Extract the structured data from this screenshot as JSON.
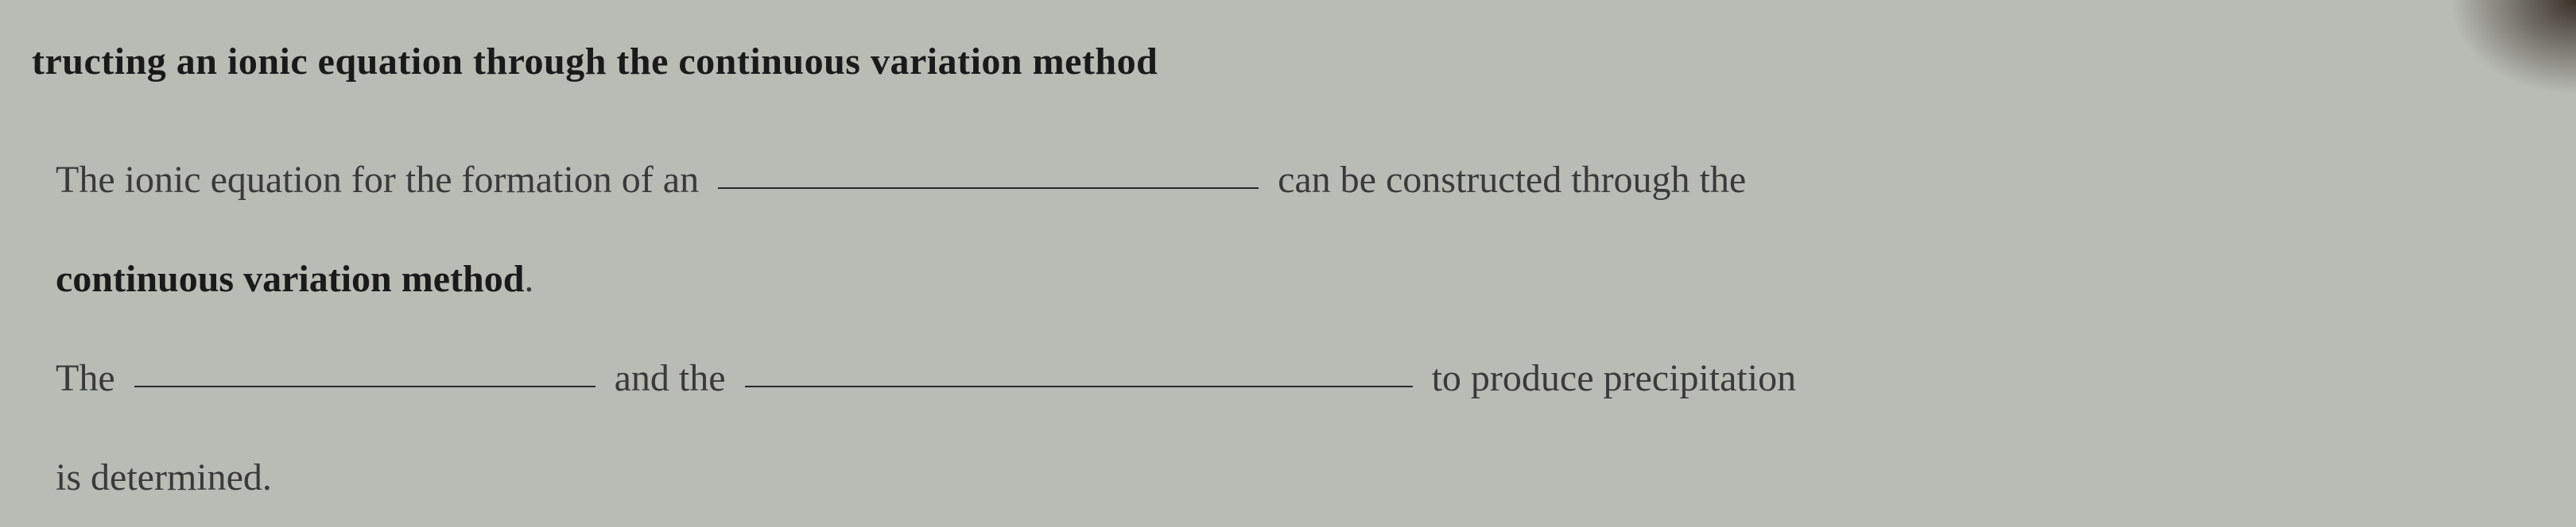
{
  "document": {
    "heading": "tructing an ionic equation through the continuous variation method",
    "line1_part1": "The ionic equation for the formation of an",
    "line1_part2": "can be constructed through the",
    "line2_bold": "continuous variation method",
    "line2_period": ".",
    "line3_part1": "The",
    "line3_part2": "and the",
    "line3_part3": "to produce precipitation",
    "line4": "is determined.",
    "styling": {
      "background_color": "#b8bcb5",
      "text_color": "#3a3a3a",
      "bold_color": "#1a1a1a",
      "font_family": "Georgia, Times New Roman, serif",
      "heading_fontsize": 48,
      "body_fontsize": 48,
      "blank_underline_color": "#2a2a2a",
      "blank_underline_width": 2,
      "blank_width_default": 680,
      "blank_width_medium": 580,
      "blank_width_wide": 840,
      "line_height": 2.6
    }
  }
}
